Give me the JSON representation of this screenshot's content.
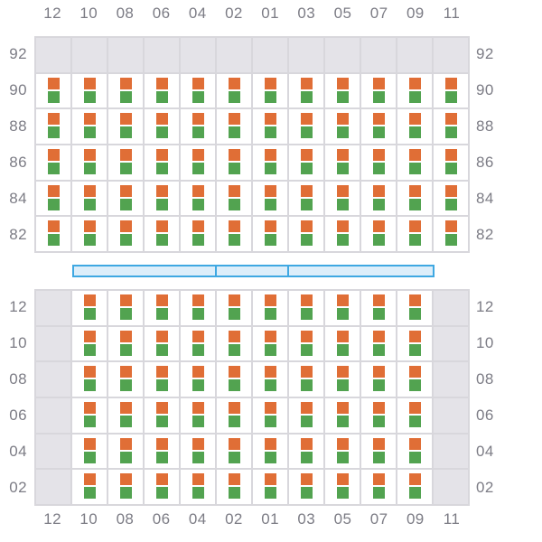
{
  "axis": {
    "columns": [
      "12",
      "10",
      "08",
      "06",
      "04",
      "02",
      "01",
      "03",
      "05",
      "07",
      "09",
      "11"
    ]
  },
  "upper_section": {
    "row_labels": [
      "92",
      "90",
      "88",
      "86",
      "84",
      "82"
    ],
    "occupancy": [
      [
        0,
        0,
        0,
        0,
        0,
        0,
        0,
        0,
        0,
        0,
        0,
        0
      ],
      [
        1,
        1,
        1,
        1,
        1,
        1,
        1,
        1,
        1,
        1,
        1,
        1
      ],
      [
        1,
        1,
        1,
        1,
        1,
        1,
        1,
        1,
        1,
        1,
        1,
        1
      ],
      [
        1,
        1,
        1,
        1,
        1,
        1,
        1,
        1,
        1,
        1,
        1,
        1
      ],
      [
        1,
        1,
        1,
        1,
        1,
        1,
        1,
        1,
        1,
        1,
        1,
        1
      ],
      [
        1,
        1,
        1,
        1,
        1,
        1,
        1,
        1,
        1,
        1,
        1,
        1
      ]
    ]
  },
  "lower_section": {
    "row_labels": [
      "12",
      "10",
      "08",
      "06",
      "04",
      "02"
    ],
    "occupancy": [
      [
        0,
        1,
        1,
        1,
        1,
        1,
        1,
        1,
        1,
        1,
        1,
        0
      ],
      [
        0,
        1,
        1,
        1,
        1,
        1,
        1,
        1,
        1,
        1,
        1,
        0
      ],
      [
        0,
        1,
        1,
        1,
        1,
        1,
        1,
        1,
        1,
        1,
        1,
        0
      ],
      [
        0,
        1,
        1,
        1,
        1,
        1,
        1,
        1,
        1,
        1,
        1,
        0
      ],
      [
        0,
        1,
        1,
        1,
        1,
        1,
        1,
        1,
        1,
        1,
        1,
        0
      ],
      [
        0,
        1,
        1,
        1,
        1,
        1,
        1,
        1,
        1,
        1,
        1,
        0
      ]
    ]
  },
  "slider": {
    "segment_widths": [
      159,
      80,
      162
    ]
  },
  "colors": {
    "marker_top": "#e06e36",
    "marker_bottom": "#52a350",
    "empty_cell": "#e4e3e8",
    "grid_line": "#d8d7dc",
    "slider_fill": "#ddeefa",
    "slider_border": "#3fa8e2",
    "label_text": "#7c7c85"
  }
}
